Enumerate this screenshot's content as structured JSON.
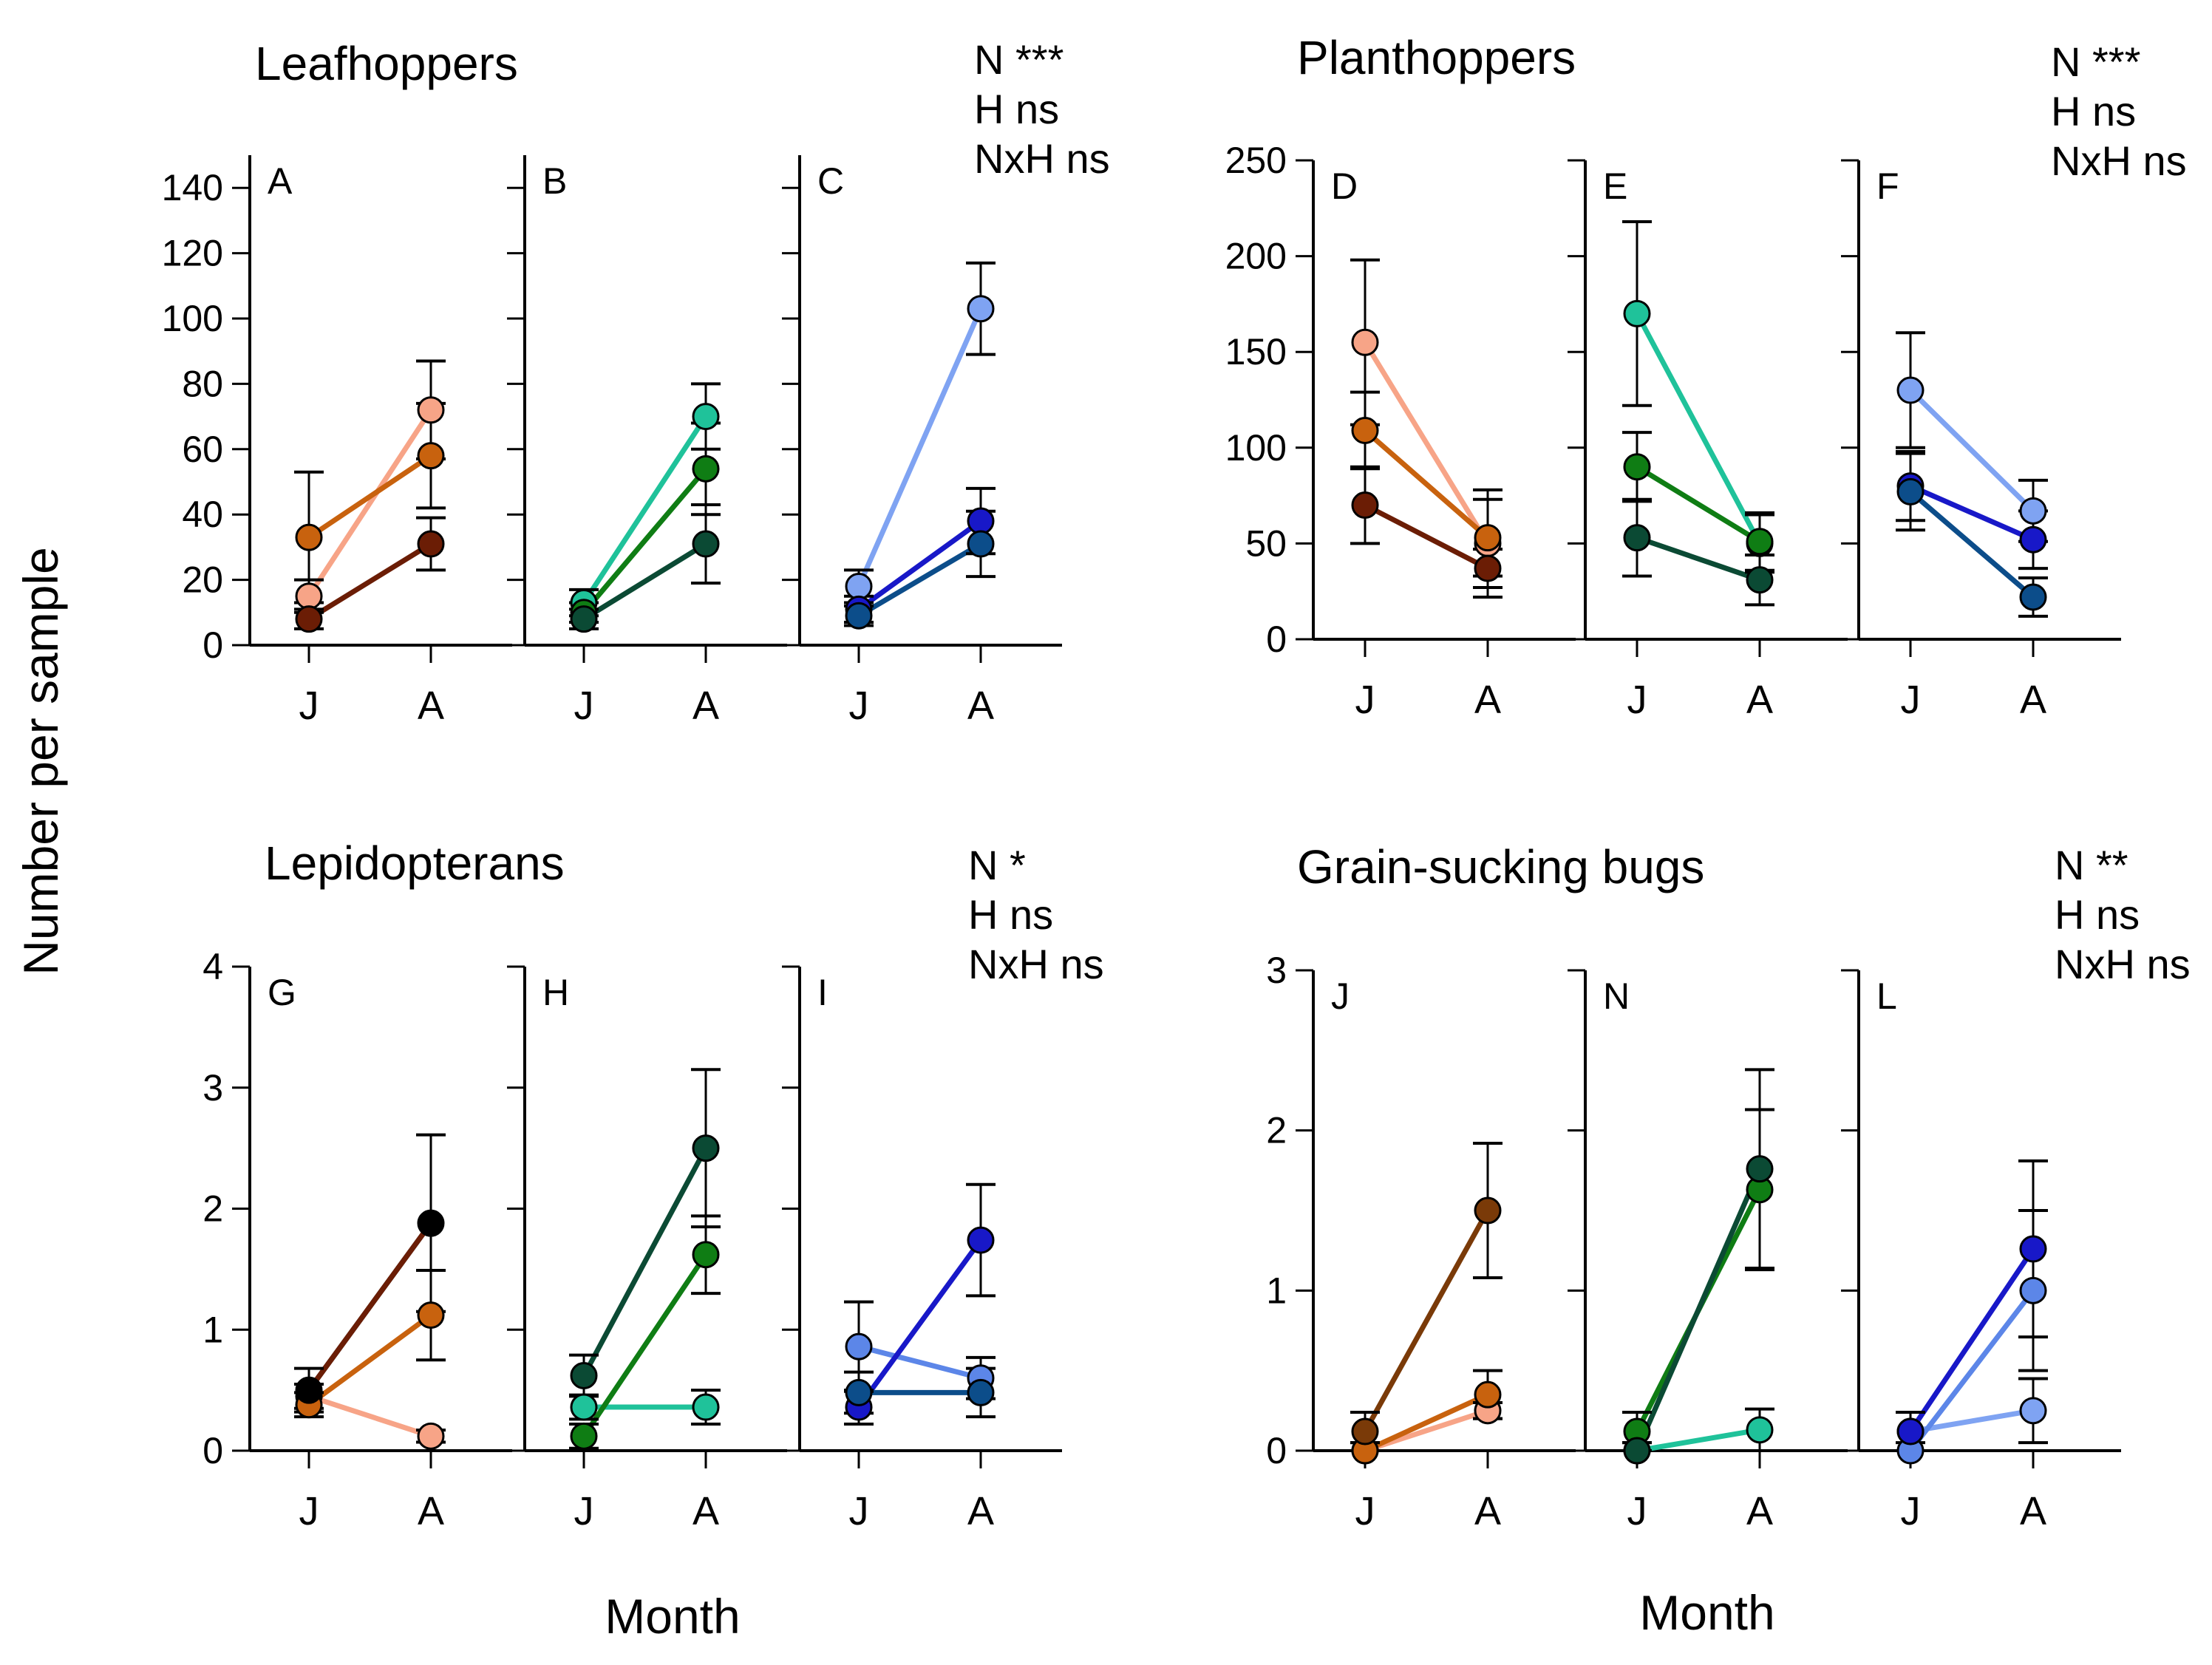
{
  "figure": {
    "ylabel": "Number per sample",
    "xlabel_left": "Month",
    "xlabel_right": "Month"
  },
  "chart_data": [
    {
      "group": "Leafhoppers",
      "type": "line",
      "title": "Leafhoppers",
      "stats": [
        "N ***",
        "H ns",
        "NxH ns"
      ],
      "categories": [
        "J",
        "A"
      ],
      "ylim": [
        0,
        150
      ],
      "yticks": [
        0,
        20,
        40,
        60,
        80,
        100,
        120,
        140
      ],
      "panels": [
        {
          "label": "A",
          "series": [
            {
              "color": "#f7a487",
              "values": [
                15,
                72
              ],
              "err": [
                5,
                15
              ]
            },
            {
              "color": "#c8620e",
              "values": [
                33,
                58
              ],
              "err": [
                20,
                16
              ]
            },
            {
              "color": "#6b1d05",
              "values": [
                8,
                31
              ],
              "err": [
                3,
                8
              ]
            }
          ]
        },
        {
          "label": "B",
          "series": [
            {
              "color": "#1fc29a",
              "values": [
                13,
                70
              ],
              "err": [
                4,
                10
              ]
            },
            {
              "color": "#0f7d14",
              "values": [
                10,
                54
              ],
              "err": [
                3,
                14
              ]
            },
            {
              "color": "#0b4a34",
              "values": [
                8,
                31
              ],
              "err": [
                3,
                12
              ]
            }
          ]
        },
        {
          "label": "C",
          "series": [
            {
              "color": "#7fa3f2",
              "values": [
                18,
                103
              ],
              "err": [
                5,
                14
              ]
            },
            {
              "color": "#1818c8",
              "values": [
                11,
                38
              ],
              "err": [
                4,
                10
              ]
            },
            {
              "color": "#0c4d8a",
              "values": [
                9,
                31
              ],
              "err": [
                3,
                10
              ]
            }
          ]
        }
      ]
    },
    {
      "group": "Planthoppers",
      "type": "line",
      "title": "Planthoppers",
      "stats": [
        "N ***",
        "H ns",
        "NxH ns"
      ],
      "categories": [
        "J",
        "A"
      ],
      "ylim": [
        0,
        250
      ],
      "yticks": [
        0,
        50,
        100,
        150,
        200,
        250
      ],
      "panels": [
        {
          "label": "D",
          "series": [
            {
              "color": "#f7a487",
              "values": [
                155,
                50
              ],
              "err": [
                43,
                28
              ]
            },
            {
              "color": "#c8620e",
              "values": [
                109,
                53
              ],
              "err": [
                20,
                20
              ]
            },
            {
              "color": "#6b1d05",
              "values": [
                70,
                37
              ],
              "err": [
                20,
                10
              ]
            }
          ]
        },
        {
          "label": "E",
          "series": [
            {
              "color": "#1fc29a",
              "values": [
                170,
                50
              ],
              "err": [
                48,
                15
              ]
            },
            {
              "color": "#0f7d14",
              "values": [
                90,
                51
              ],
              "err": [
                18,
                15
              ]
            },
            {
              "color": "#0b4a34",
              "values": [
                53,
                31
              ],
              "err": [
                20,
                13
              ]
            }
          ]
        },
        {
          "label": "F",
          "series": [
            {
              "color": "#7fa3f2",
              "values": [
                130,
                67
              ],
              "err": [
                30,
                16
              ]
            },
            {
              "color": "#1818c8",
              "values": [
                80,
                52
              ],
              "err": [
                18,
                15
              ]
            },
            {
              "color": "#0c4d8a",
              "values": [
                77,
                22
              ],
              "err": [
                20,
                10
              ]
            }
          ]
        }
      ]
    },
    {
      "group": "Lepidopterans",
      "type": "line",
      "title": "Lepidopterans",
      "stats": [
        "N *",
        "H ns",
        "NxH ns"
      ],
      "categories": [
        "J",
        "A"
      ],
      "ylim": [
        0,
        4
      ],
      "yticks": [
        0,
        1,
        2,
        3,
        4
      ],
      "panels": [
        {
          "label": "G",
          "series": [
            {
              "color": "#f7a487",
              "values": [
                0.45,
                0.12
              ],
              "err": [
                0.1,
                0.05
              ]
            },
            {
              "color": "#c8620e",
              "values": [
                0.38,
                1.12
              ],
              "err": [
                0.1,
                0.37
              ]
            },
            {
              "color": "#000000",
              "values": [
                0.5,
                1.88
              ],
              "err": [
                0.18,
                0.73
              ]
            },
            {
              "color": "#6b1d05",
              "values": [
                0.5,
                1.88
              ],
              "err": [
                0,
                0
              ],
              "line_only": true
            }
          ]
        },
        {
          "label": "H",
          "series": [
            {
              "color": "#1fc29a",
              "values": [
                0.36,
                0.36
              ],
              "err": [
                0.1,
                0.14
              ]
            },
            {
              "color": "#0f7d14",
              "values": [
                0.12,
                1.62
              ],
              "err": [
                0.1,
                0.32
              ]
            },
            {
              "color": "#0b4a34",
              "values": [
                0.62,
                2.5
              ],
              "err": [
                0.17,
                0.65
              ]
            }
          ]
        },
        {
          "label": "I",
          "series": [
            {
              "color": "#5c86e8",
              "values": [
                0.86,
                0.6
              ],
              "err": [
                0.37,
                0.17
              ]
            },
            {
              "color": "#1818c8",
              "values": [
                0.36,
                1.74
              ],
              "err": [
                0.14,
                0.46
              ]
            },
            {
              "color": "#0c4d8a",
              "values": [
                0.48,
                0.48
              ],
              "err": [
                0.17,
                0.2
              ]
            }
          ]
        }
      ]
    },
    {
      "group": "Grain-sucking bugs",
      "type": "line",
      "title": "Grain-sucking bugs",
      "stats": [
        "N **",
        "H ns",
        "NxH ns"
      ],
      "categories": [
        "J",
        "A"
      ],
      "ylim": [
        0,
        3
      ],
      "yticks": [
        0,
        1,
        2,
        3
      ],
      "panels": [
        {
          "label": "J",
          "series": [
            {
              "color": "#f7a487",
              "values": [
                0.0,
                0.25
              ],
              "err": [
                0.05,
                0.05
              ]
            },
            {
              "color": "#c8620e",
              "values": [
                0.0,
                0.35
              ],
              "err": [
                0.05,
                0.15
              ]
            },
            {
              "color": "#7a3a08",
              "values": [
                0.12,
                1.5
              ],
              "err": [
                0.12,
                0.42
              ]
            }
          ]
        },
        {
          "label": "N",
          "series": [
            {
              "color": "#1fc29a",
              "values": [
                0.0,
                0.13
              ],
              "err": [
                0.05,
                0.13
              ]
            },
            {
              "color": "#0f7d14",
              "values": [
                0.12,
                1.63
              ],
              "err": [
                0.12,
                0.5
              ]
            },
            {
              "color": "#0b4a34",
              "values": [
                0.0,
                1.76
              ],
              "err": [
                0.05,
                0.62
              ]
            }
          ]
        },
        {
          "label": "L",
          "series": [
            {
              "color": "#7fa3f2",
              "values": [
                0.12,
                0.25
              ],
              "err": [
                0.12,
                0.2
              ]
            },
            {
              "color": "#5c86e8",
              "values": [
                0.0,
                1.0
              ],
              "err": [
                0.05,
                0.5
              ]
            },
            {
              "color": "#1818c8",
              "values": [
                0.12,
                1.26
              ],
              "err": [
                0.12,
                0.55
              ]
            }
          ]
        }
      ]
    }
  ]
}
